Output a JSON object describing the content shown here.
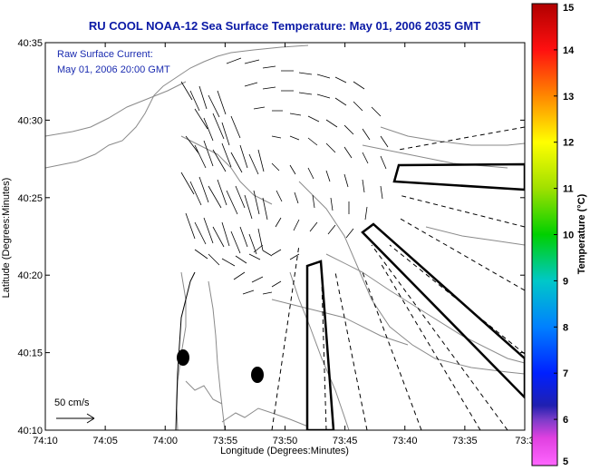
{
  "header": {
    "title": "RU COOL  NOAA-12  Sea Surface Temperature:  May 01, 2006 2035 GMT"
  },
  "map": {
    "annotation_line1": "Raw Surface Current:",
    "annotation_line2": "May 01, 2006 20:00 GMT",
    "scale_label": "50 cm/s",
    "xlabel": "Longitude (Degrees:Minutes)",
    "ylabel": "Latitude (Degrees:Minutes)",
    "x_ticks": [
      "74:10",
      "74:05",
      "74:00",
      "73:55",
      "73:50",
      "73:45",
      "73:40",
      "73:35",
      "73:3"
    ],
    "y_ticks": [
      "40:35",
      "40:30",
      "40:25",
      "40:20",
      "40:15",
      "40:10"
    ]
  },
  "colorbar": {
    "label": "Temperature (°C)",
    "min": 5,
    "max": 15,
    "ticks": [
      "15",
      "14",
      "13",
      "12",
      "11",
      "10",
      "9",
      "8",
      "7",
      "6",
      "5"
    ]
  },
  "colors": {
    "title": "#0b1aa6",
    "annotation": "#1a2bb0"
  }
}
